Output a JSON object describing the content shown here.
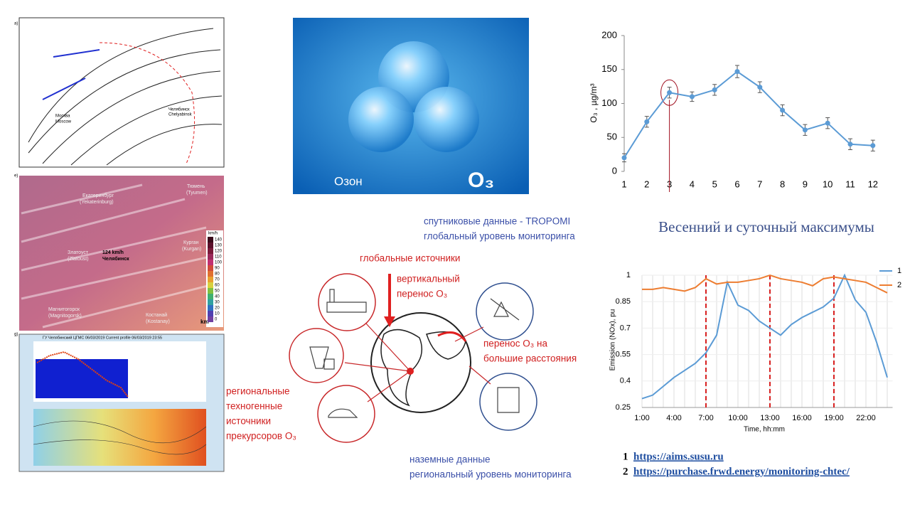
{
  "chart_data": [
    {
      "type": "line",
      "categories": [
        "1",
        "2",
        "3",
        "4",
        "5",
        "6",
        "7",
        "8",
        "9",
        "10",
        "11",
        "12"
      ],
      "values": [
        20,
        73,
        116,
        110,
        120,
        147,
        124,
        90,
        61,
        71,
        40,
        38
      ],
      "errors": [
        6,
        8,
        8,
        7,
        8,
        9,
        8,
        8,
        8,
        8,
        8,
        8
      ],
      "ylabel": "O₃ , µg/m³",
      "ylim": [
        0,
        200
      ],
      "yticks": [
        0,
        50,
        100,
        150,
        200
      ],
      "color": "#5b9bd5"
    },
    {
      "type": "line",
      "x": [
        1,
        2,
        3,
        4,
        5,
        6,
        7,
        8,
        9,
        10,
        11,
        12,
        13,
        14,
        15,
        16,
        17,
        18,
        19,
        20,
        21,
        22,
        23,
        24
      ],
      "series": [
        {
          "name": "1",
          "color": "#5b9bd5",
          "values": [
            0.3,
            0.32,
            0.37,
            0.42,
            0.46,
            0.5,
            0.56,
            0.66,
            0.96,
            0.83,
            0.8,
            0.74,
            0.7,
            0.66,
            0.72,
            0.76,
            0.79,
            0.82,
            0.87,
            1,
            0.86,
            0.79,
            0.62,
            0.42
          ]
        },
        {
          "name": "2",
          "color": "#ed7d31",
          "values": [
            0.92,
            0.92,
            0.93,
            0.92,
            0.91,
            0.93,
            0.98,
            0.95,
            0.96,
            0.96,
            0.97,
            0.98,
            1,
            0.98,
            0.97,
            0.96,
            0.94,
            0.98,
            0.99,
            0.98,
            0.97,
            0.96,
            0.93,
            0.9
          ]
        }
      ],
      "vlines": [
        7,
        13,
        19
      ],
      "xlabel": "Time, hh:mm",
      "ylabel": "Emission (NOx), pu",
      "xlim": [
        1,
        24.5
      ],
      "xticks": [
        {
          "value": 1,
          "label": "1:00"
        },
        {
          "value": 4,
          "label": "4:00"
        },
        {
          "value": 7,
          "label": "7:00"
        },
        {
          "value": 10,
          "label": "10:00"
        },
        {
          "value": 13,
          "label": "13:00"
        },
        {
          "value": 16,
          "label": "16:00"
        },
        {
          "value": 19,
          "label": "19:00"
        },
        {
          "value": 22,
          "label": "22:00"
        }
      ],
      "ylim": [
        0.25,
        1
      ],
      "yticks": [
        0.25,
        0.4,
        0.55,
        0.7,
        0.85,
        1
      ],
      "grid": true,
      "legend": "right"
    }
  ],
  "ozone_image": {
    "label": "Озон",
    "formula": "O₃"
  },
  "heading": "Весенний и суточный максимумы",
  "links": [
    {
      "number": "1",
      "url": "https://aims.susu.ru"
    },
    {
      "number": "2",
      "url": "https://purchase.frwd.energy/monitoring-chtec/"
    }
  ],
  "diagram": {
    "satellite": [
      "спутниковые данные - TROPOMI",
      "глобальный уровень мониторинга"
    ],
    "global_sources": "глобальные источники",
    "vertical": [
      "вертикальный",
      "перенос O₃"
    ],
    "long_range": [
      "перенос O₃ на",
      "большие расстояния"
    ],
    "regional": [
      "региональные",
      "техногенные",
      "источники",
      "прекурсоров O₃"
    ],
    "ground": [
      "наземные данные",
      "региональный уровень мониторинга"
    ]
  },
  "maps": {
    "synoptic": {
      "panel": "a)",
      "cities": [
        "Москва",
        "Moscow",
        "Челябинск",
        "Chelyabinsk"
      ]
    },
    "wind": {
      "panel": "e)",
      "cities": [
        "Екатеринбург",
        "(Yekaterinburg)",
        "Тюмень",
        "(Tyumen)",
        "Курган",
        "(Kurgan)",
        "Златоуст",
        "(Zlatoust)",
        "Магнитогорск",
        "(Magnitogorsk)",
        "Костанай",
        "(Kostanay)"
      ],
      "speed": "124 km/h",
      "city": "Челябинск",
      "unit": "km/h",
      "scale": [
        140,
        130,
        120,
        110,
        100,
        90,
        80,
        70,
        60,
        50,
        40,
        30,
        20,
        10,
        0
      ],
      "distance": "km"
    },
    "profile": {
      "panel": "g)",
      "title": "ГУ Челябинский ЦГМС 06/03/2019 Current profile 06/03/2019 23:55"
    }
  }
}
